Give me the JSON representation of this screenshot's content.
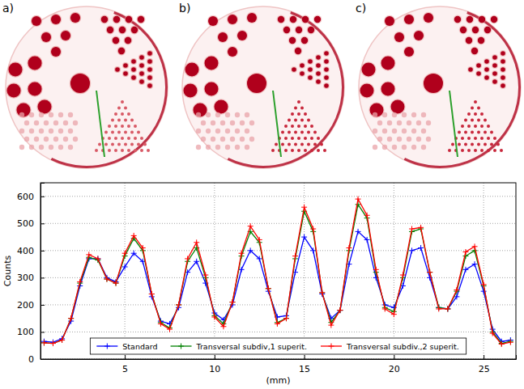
{
  "image_panels": [
    {
      "label": "a)"
    },
    {
      "label": "b)"
    },
    {
      "label": "c)"
    }
  ],
  "chart_data": {
    "type": "line",
    "x_label": "(mm)",
    "y_label": "Counts",
    "x": [
      0.5,
      1.0,
      1.5,
      2.0,
      2.5,
      3.0,
      3.5,
      4.0,
      4.5,
      5.0,
      5.5,
      6.0,
      6.5,
      7.0,
      7.5,
      8.0,
      8.5,
      9.0,
      9.5,
      10.0,
      10.5,
      11.0,
      11.5,
      12.0,
      12.5,
      13.0,
      13.5,
      14.0,
      14.5,
      15.0,
      15.5,
      16.0,
      16.5,
      17.0,
      17.5,
      18.0,
      18.5,
      19.0,
      19.5,
      20.0,
      20.5,
      21.0,
      21.5,
      22.0,
      22.5,
      23.0,
      23.5,
      24.0,
      24.5,
      25.0,
      25.5,
      26.0,
      26.5
    ],
    "series": [
      {
        "name": "Standard",
        "color": "#0000ff",
        "marker": "+",
        "line_style": "solid",
        "values": [
          65,
          62,
          75,
          140,
          270,
          370,
          370,
          300,
          285,
          340,
          390,
          360,
          230,
          140,
          130,
          190,
          320,
          360,
          280,
          170,
          145,
          200,
          330,
          400,
          370,
          250,
          155,
          160,
          320,
          450,
          400,
          240,
          150,
          180,
          350,
          470,
          440,
          300,
          200,
          190,
          270,
          400,
          410,
          300,
          190,
          185,
          230,
          330,
          350,
          250,
          110,
          65,
          70
        ]
      },
      {
        "name": "Transversal subdiv,1 superit.",
        "color": "#008000",
        "marker": "+",
        "line_style": "solid",
        "values": [
          60,
          58,
          70,
          150,
          280,
          375,
          365,
          295,
          280,
          380,
          445,
          400,
          240,
          135,
          115,
          200,
          360,
          410,
          300,
          160,
          130,
          210,
          380,
          470,
          430,
          260,
          135,
          150,
          370,
          545,
          470,
          245,
          135,
          180,
          400,
          570,
          520,
          320,
          190,
          175,
          300,
          470,
          480,
          320,
          190,
          185,
          250,
          380,
          400,
          270,
          100,
          58,
          65
        ]
      },
      {
        "name": "Transversal subdiv.,2 superit.",
        "color": "#ff0000",
        "marker": "+",
        "line_style": "solid",
        "values": [
          60,
          58,
          70,
          150,
          285,
          385,
          370,
          295,
          280,
          390,
          455,
          410,
          240,
          130,
          110,
          200,
          370,
          430,
          310,
          155,
          120,
          210,
          390,
          490,
          440,
          260,
          130,
          150,
          380,
          560,
          480,
          245,
          125,
          180,
          410,
          590,
          530,
          330,
          185,
          165,
          310,
          480,
          485,
          320,
          185,
          185,
          255,
          395,
          415,
          275,
          95,
          55,
          62
        ]
      }
    ],
    "xlim": [
      0.3,
      26.8
    ],
    "ylim": [
      0,
      650
    ],
    "xticks": [
      5,
      10,
      15,
      20,
      25
    ],
    "yticks": [
      0,
      100,
      200,
      300,
      400,
      500,
      600
    ],
    "grid": true,
    "legend": "lower center"
  }
}
